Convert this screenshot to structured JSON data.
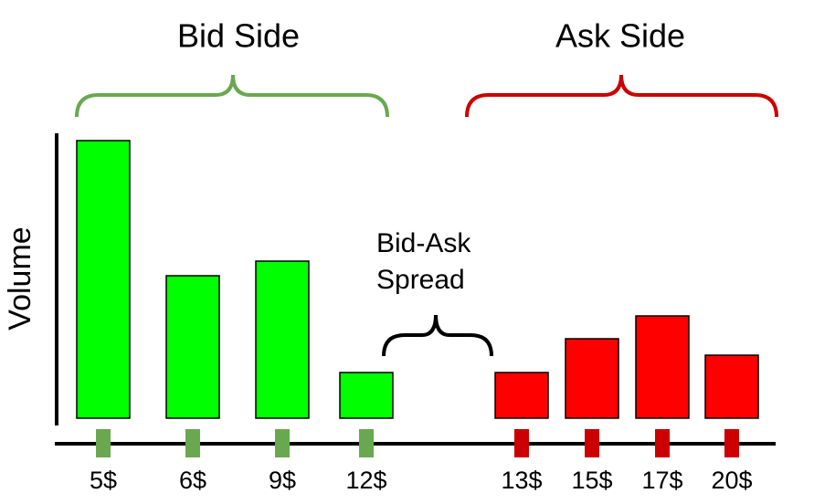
{
  "chart_data": {
    "type": "bar",
    "bid_label": "Bid Side",
    "ask_label": "Ask Side",
    "spread_label": [
      "Bid-Ask",
      "Spread"
    ],
    "ylabel": "Volume",
    "categories": [
      "5$",
      "6$",
      "9$",
      "12$",
      "13$",
      "15$",
      "17$",
      "20$"
    ],
    "values": [
      304,
      156,
      172,
      50,
      50,
      87,
      112,
      69
    ],
    "colors": [
      "#00ff00",
      "#00ff00",
      "#00ff00",
      "#00ff00",
      "#ff0000",
      "#ff0000",
      "#ff0000",
      "#ff0000"
    ],
    "tick_colors": [
      "#6aa84f",
      "#6aa84f",
      "#6aa84f",
      "#6aa84f",
      "#cc0000",
      "#cc0000",
      "#cc0000",
      "#cc0000"
    ],
    "ylim": [
      0,
      320
    ]
  }
}
